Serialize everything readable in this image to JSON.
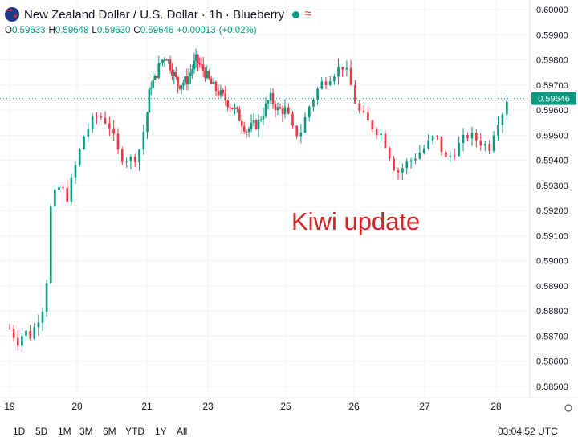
{
  "header": {
    "title": "New Zealand Dollar / U.S. Dollar · 1h · Blueberry",
    "wave_symbol": "≈",
    "ohlc": [
      {
        "k": "O",
        "v": "0.59633"
      },
      {
        "k": "H",
        "v": "0.59648"
      },
      {
        "k": "L",
        "v": "0.59630"
      },
      {
        "k": "C",
        "v": "0.59646"
      },
      {
        "k": "",
        "v": "+0.00013"
      },
      {
        "k": "",
        "v": "(+0.02%)"
      }
    ]
  },
  "annotation": "Kiwi update",
  "price_axis": {
    "ticks": [
      "0.60000",
      "0.59900",
      "0.59800",
      "0.59700",
      "0.59600",
      "0.59500",
      "0.59400",
      "0.59300",
      "0.59200",
      "0.59100",
      "0.59000",
      "0.58900",
      "0.58800",
      "0.58700",
      "0.58600",
      "0.58500"
    ],
    "current_price": "0.59646"
  },
  "time_axis": {
    "ticks": [
      "19",
      "20",
      "21",
      "23",
      "25",
      "26",
      "27",
      "28"
    ]
  },
  "range_buttons": [
    "1D",
    "5D",
    "1M",
    "3M",
    "6M",
    "YTD",
    "1Y",
    "All"
  ],
  "clock": "03:04:52 UTC",
  "colors": {
    "up": "#089981",
    "down": "#f23645",
    "annotation": "#d32323",
    "grid": "#f0f3fa"
  },
  "chart_data": {
    "type": "candlestick",
    "title": "New Zealand Dollar / U.S. Dollar · 1h · Blueberry",
    "ylim": [
      0.5848,
      0.6002
    ],
    "close_path": [
      [
        19.0,
        0.5873
      ],
      [
        19.12,
        0.5868
      ],
      [
        19.22,
        0.5872
      ],
      [
        19.3,
        0.587
      ],
      [
        19.4,
        0.5875
      ],
      [
        19.48,
        0.5882
      ],
      [
        19.52,
        0.5879
      ],
      [
        19.55,
        0.5893
      ],
      [
        19.6,
        0.592
      ],
      [
        19.65,
        0.5925
      ],
      [
        19.75,
        0.593
      ],
      [
        19.85,
        0.5925
      ],
      [
        19.95,
        0.5935
      ],
      [
        20.0,
        0.594
      ],
      [
        20.1,
        0.595
      ],
      [
        20.2,
        0.5955
      ],
      [
        20.3,
        0.5958
      ],
      [
        20.45,
        0.5955
      ],
      [
        20.6,
        0.5942
      ],
      [
        20.8,
        0.594
      ],
      [
        20.9,
        0.5945
      ],
      [
        20.98,
        0.5955
      ],
      [
        21.1,
        0.597
      ],
      [
        21.25,
        0.5972
      ],
      [
        21.4,
        0.5978
      ],
      [
        21.6,
        0.5982
      ],
      [
        21.8,
        0.5976
      ],
      [
        22.0,
        0.597
      ],
      [
        22.3,
        0.5972
      ],
      [
        22.6,
        0.598
      ],
      [
        22.9,
        0.5975
      ],
      [
        23.1,
        0.597
      ],
      [
        23.4,
        0.5965
      ],
      [
        23.7,
        0.596
      ],
      [
        24.0,
        0.5952
      ],
      [
        24.3,
        0.5955
      ],
      [
        24.6,
        0.5965
      ],
      [
        24.8,
        0.596
      ],
      [
        25.0,
        0.596
      ],
      [
        25.1,
        0.5952
      ],
      [
        25.2,
        0.595
      ],
      [
        25.35,
        0.5962
      ],
      [
        25.5,
        0.597
      ],
      [
        25.7,
        0.5975
      ],
      [
        25.85,
        0.5978
      ],
      [
        25.95,
        0.597
      ],
      [
        26.05,
        0.596
      ],
      [
        26.2,
        0.5955
      ],
      [
        26.4,
        0.595
      ],
      [
        26.6,
        0.5935
      ],
      [
        26.8,
        0.594
      ],
      [
        27.0,
        0.5945
      ],
      [
        27.15,
        0.595
      ],
      [
        27.3,
        0.594
      ],
      [
        27.45,
        0.5945
      ],
      [
        27.6,
        0.595
      ],
      [
        27.75,
        0.5948
      ],
      [
        27.9,
        0.5945
      ],
      [
        28.0,
        0.5955
      ],
      [
        28.1,
        0.596
      ],
      [
        28.15,
        0.59646
      ]
    ]
  }
}
